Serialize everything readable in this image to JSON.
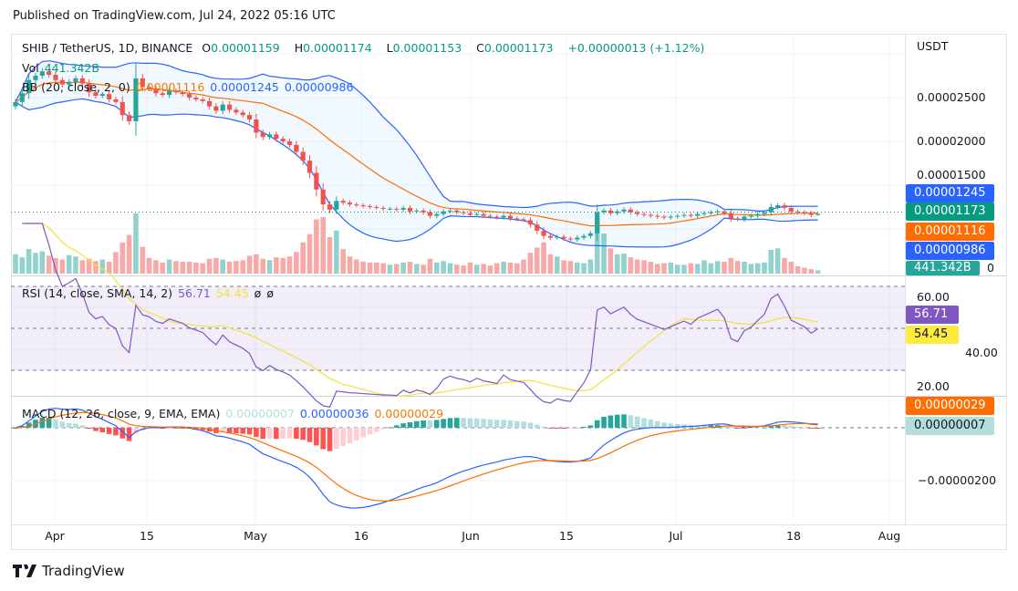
{
  "header": {
    "published": "Published on TradingView.com, Jul 24, 2022 05:16 UTC"
  },
  "legend": {
    "symbol": "SHIB / TetherUS, 1D, BINANCE",
    "o_label": "O",
    "o": "0.00001159",
    "h_label": "H",
    "h": "0.00001174",
    "l_label": "L",
    "l": "0.00001153",
    "c_label": "C",
    "c": "0.00001173",
    "change": "+0.00000013 (+1.12%)",
    "vol_label": "Vol",
    "vol": "441.342B",
    "bb_label": "BB (20, close, 2, 0)",
    "bb_basis": "0.00001116",
    "bb_upper": "0.00001245",
    "bb_lower": "0.00000986",
    "rsi_label": "RSI (14, close, SMA, 14, 2)",
    "rsi": "56.71",
    "rsi_ma": "54.45",
    "rsi_x1": "ø",
    "rsi_x2": "ø",
    "macd_label": "MACD (12, 26, close, 9, EMA, EMA)",
    "macd_hist": "0.00000007",
    "macd": "0.00000036",
    "macd_signal": "0.00000029"
  },
  "price_axis": {
    "currency": "USDT",
    "ticks": [
      "0.00002500",
      "0.00002000",
      "0.00001500"
    ],
    "vol_zero": "0"
  },
  "rsi_axis": {
    "ticks": [
      "60.00",
      "40.00",
      "20.00"
    ]
  },
  "macd_axis": {
    "ticks": [
      "−0.00000200"
    ]
  },
  "badges": {
    "bb_upper": "0.00001245",
    "last": "0.00001173",
    "bb_basis": "0.00001116",
    "bb_lower": "0.00000986",
    "vol": "441.342B",
    "rsi": "56.71",
    "rsi_ma": "54.45",
    "macd_signal": "0.00000029",
    "macd_hist": "0.00000007"
  },
  "time_axis": [
    "Apr",
    "15",
    "May",
    "16",
    "Jun",
    "15",
    "Jul",
    "18",
    "Aug"
  ],
  "footer": {
    "brand": "TradingView"
  },
  "colors": {
    "up": "#26a69a",
    "down": "#ef5350",
    "bb": "#2962ff",
    "bb_basis": "#ff6d00",
    "rsi": "#7e57c2",
    "rsi_ma": "#f4e03a",
    "macd": "#2962ff",
    "signal": "#ff6d00"
  },
  "chart_data": {
    "type": "candlestick",
    "title": "SHIB / TetherUS, 1D, BINANCE",
    "start_date": "2022-03-26",
    "end_date": "2022-07-24",
    "interval": "1D",
    "ylim": [
      8.8e-06,
      2.9e-05
    ],
    "last_candle": {
      "open": 1.159e-05,
      "high": 1.174e-05,
      "low": 1.153e-05,
      "close": 1.173e-05
    },
    "close": [
      2.45e-05,
      2.55e-05,
      2.7e-05,
      2.75e-05,
      2.8e-05,
      2.76e-05,
      2.7e-05,
      2.65e-05,
      2.68e-05,
      2.72e-05,
      2.66e-05,
      2.56e-05,
      2.52e-05,
      2.54e-05,
      2.48e-05,
      2.45e-05,
      2.3e-05,
      2.23e-05,
      2.72e-05,
      2.62e-05,
      2.6e-05,
      2.55e-05,
      2.53e-05,
      2.58e-05,
      2.56e-05,
      2.54e-05,
      2.5e-05,
      2.48e-05,
      2.46e-05,
      2.4e-05,
      2.35e-05,
      2.42e-05,
      2.36e-05,
      2.33e-05,
      2.3e-05,
      2.25e-05,
      2.1e-05,
      2.05e-05,
      2.08e-05,
      2.03e-05,
      2e-05,
      1.96e-05,
      1.88e-05,
      1.78e-05,
      1.64e-05,
      1.45e-05,
      1.28e-05,
      1.22e-05,
      1.32e-05,
      1.3e-05,
      1.28e-05,
      1.27e-05,
      1.26e-05,
      1.25e-05,
      1.24e-05,
      1.23e-05,
      1.23e-05,
      1.22e-05,
      1.24e-05,
      1.2e-05,
      1.21e-05,
      1.19e-05,
      1.15e-05,
      1.17e-05,
      1.2e-05,
      1.21e-05,
      1.19e-05,
      1.18e-05,
      1.16e-05,
      1.17e-05,
      1.15e-05,
      1.14e-05,
      1.13e-05,
      1.15e-05,
      1.12e-05,
      1.11e-05,
      1.1e-05,
      1.05e-05,
      9.8e-06,
      9.2e-06,
      9e-06,
      9.1e-06,
      8.9e-06,
      8.8e-06,
      9e-06,
      9.2e-06,
      9.5e-06,
      1.19e-05,
      1.21e-05,
      1.18e-05,
      1.2e-05,
      1.22e-05,
      1.19e-05,
      1.17e-05,
      1.16e-05,
      1.15e-05,
      1.14e-05,
      1.13e-05,
      1.14e-05,
      1.15e-05,
      1.16e-05,
      1.15e-05,
      1.17e-05,
      1.18e-05,
      1.19e-05,
      1.2e-05,
      1.18e-05,
      1.12e-05,
      1.11e-05,
      1.14e-05,
      1.15e-05,
      1.17e-05,
      1.19e-05,
      1.25e-05,
      1.27e-05,
      1.24e-05,
      1.2e-05,
      1.19e-05,
      1.18e-05,
      1.16e-05,
      1.173e-05
    ],
    "volume_billions": [
      2600,
      2200,
      3300,
      2800,
      3000,
      2400,
      2100,
      1900,
      2500,
      2300,
      1800,
      2000,
      1700,
      1900,
      1600,
      2900,
      4200,
      5200,
      8100,
      3600,
      2100,
      1800,
      1500,
      1900,
      1700,
      1600,
      1600,
      1500,
      1400,
      2000,
      2100,
      1900,
      1600,
      1700,
      1800,
      2400,
      2600,
      2000,
      1800,
      2200,
      2100,
      2300,
      2900,
      4200,
      5300,
      7300,
      7600,
      4900,
      5800,
      3300,
      2300,
      1900,
      1600,
      1500,
      1500,
      1400,
      1200,
      1300,
      1500,
      1600,
      1300,
      1200,
      2000,
      1500,
      1700,
      1400,
      1200,
      1100,
      1500,
      1200,
      1300,
      1100,
      1400,
      1600,
      1500,
      1400,
      1900,
      2800,
      3500,
      4200,
      2600,
      2300,
      1800,
      1700,
      1500,
      1400,
      1900,
      7600,
      5400,
      3400,
      2600,
      2700,
      2200,
      1900,
      1800,
      1600,
      1300,
      1400,
      1500,
      1200,
      1200,
      1400,
      1300,
      1800,
      1400,
      1700,
      1600,
      2100,
      1700,
      1600,
      1300,
      1400,
      1500,
      3200,
      3400,
      2100,
      1600,
      1000,
      800,
      600,
      441.342
    ]
  }
}
